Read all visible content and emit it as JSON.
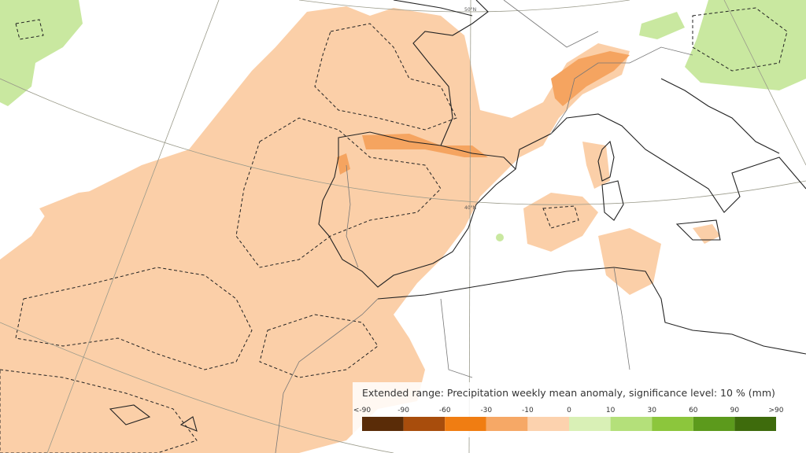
{
  "map": {
    "latitude_labels": [
      "50°N",
      "40°N"
    ],
    "legend": {
      "title": "Extended range: Precipitation weekly mean anomaly, significance level: 10 % (mm)",
      "labels": [
        "<-90",
        "-90",
        "-60",
        "-30",
        "-10",
        "0",
        "10",
        "30",
        "60",
        "90",
        ">90"
      ],
      "colors": [
        "#5a2c08",
        "#a84d0c",
        "#f07d12",
        "#f6a866",
        "#fcd2ae",
        "#d9f0b6",
        "#b4e07a",
        "#8cc63c",
        "#5c9a1c",
        "#3e6b0c"
      ]
    }
  }
}
